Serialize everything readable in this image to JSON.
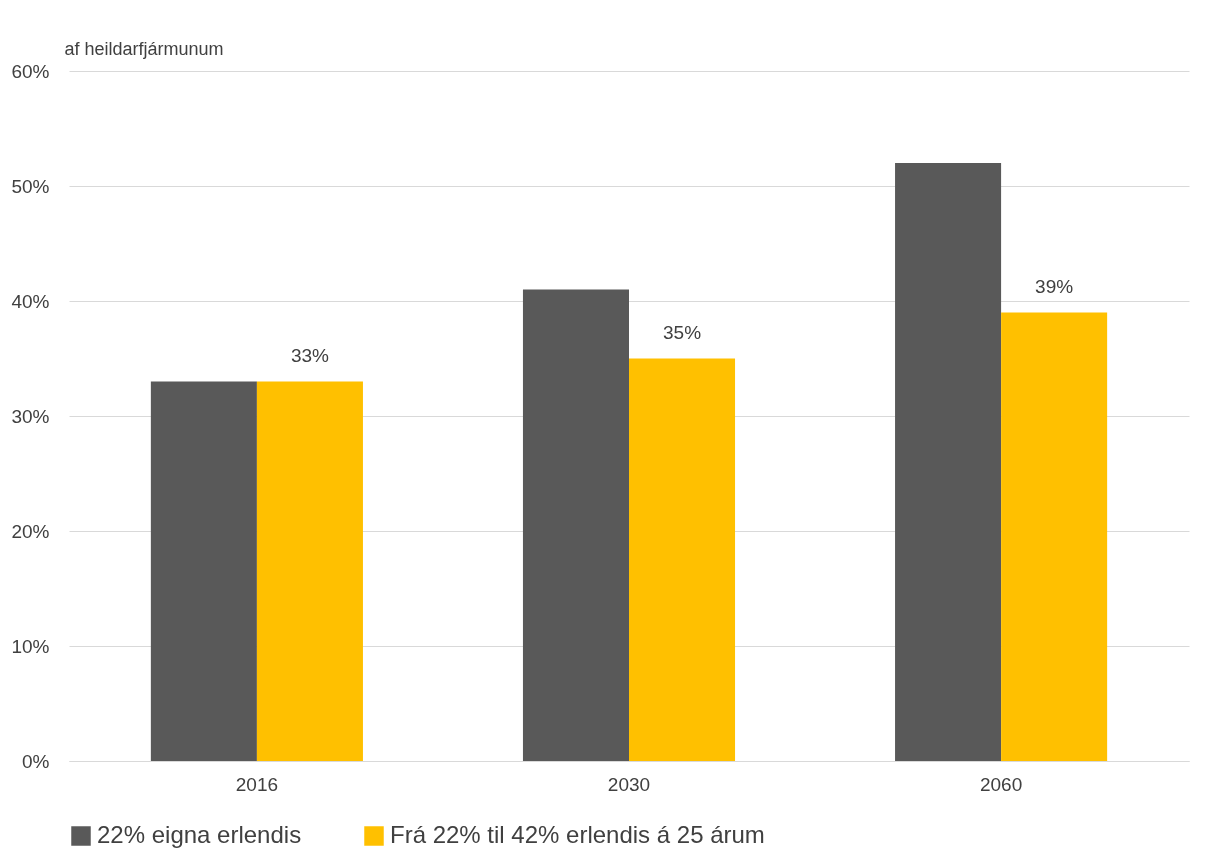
{
  "chart_data": {
    "type": "bar",
    "ylabel": "af heildarfjármunum",
    "categories": [
      "2016",
      "2030",
      "2060"
    ],
    "series": [
      {
        "name": "22% eigna erlendis",
        "color": "#595959",
        "values": [
          33,
          41,
          52
        ]
      },
      {
        "name": "Frá 22% til 42% erlendis á 25 árum",
        "color": "#ffc000",
        "values": [
          33,
          35,
          39
        ],
        "value_labels": [
          "33%",
          "35%",
          "39%"
        ]
      }
    ],
    "ylim": [
      0,
      60
    ],
    "yticks": [
      {
        "value": 0,
        "label": "0%"
      },
      {
        "value": 10,
        "label": "10%"
      },
      {
        "value": 20,
        "label": "20%"
      },
      {
        "value": 30,
        "label": "30%"
      },
      {
        "value": 40,
        "label": "40%"
      },
      {
        "value": 50,
        "label": "50%"
      },
      {
        "value": 60,
        "label": "60%"
      }
    ],
    "grid": "y",
    "legend": "bottom"
  }
}
